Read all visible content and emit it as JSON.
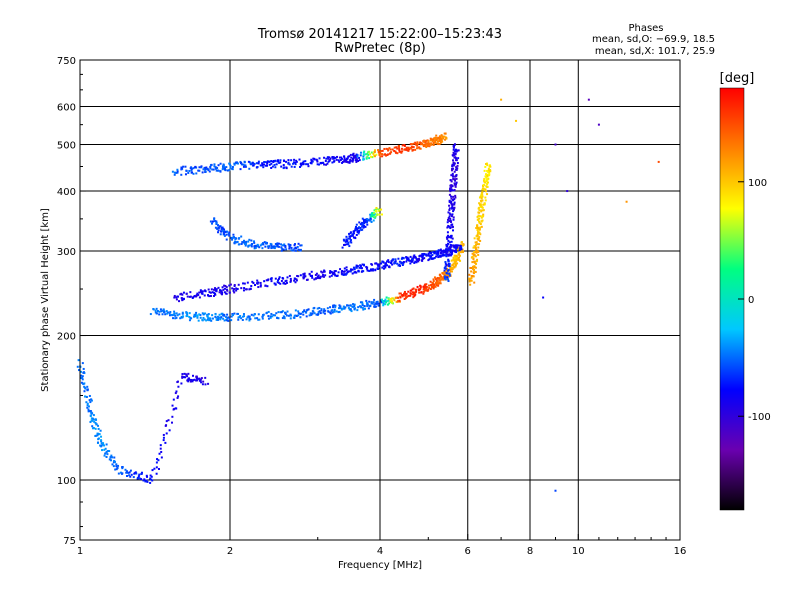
{
  "chart_data": {
    "type": "scatter",
    "title": "Tromsø 20141217 15:22:00–15:23:43",
    "subtitle": "RwPretec (8p)",
    "xlabel": "Frequency [MHz]",
    "ylabel": "Stationary phase Virtual Height [km]",
    "xscale": "log",
    "yscale": "log",
    "xlim": [
      1,
      16
    ],
    "ylim": [
      75,
      750
    ],
    "xticks": [
      1,
      2,
      4,
      6,
      8,
      10,
      16
    ],
    "xtick_labels": [
      "1",
      "2",
      "4",
      "6",
      "8",
      "10",
      "16"
    ],
    "yticks": [
      75,
      100,
      200,
      300,
      400,
      500,
      600,
      750
    ],
    "ytick_labels": [
      "75",
      "100",
      "200",
      "300",
      "400",
      "500",
      "600",
      "750"
    ],
    "grid": true,
    "phases_box": {
      "heading": "Phases",
      "line_o": "mean, sd,O: −69.9, 18.5",
      "line_x": "mean, sd,X: 101.7, 25.9"
    },
    "colorbar": {
      "label": "[deg]",
      "range": [
        -180,
        180
      ],
      "ticks": [
        100,
        0,
        -100
      ],
      "tick_labels": [
        "100",
        "0",
        "-100"
      ],
      "colors": [
        "#000000",
        "#6a00b0",
        "#0000ff",
        "#00c8ff",
        "#00ff80",
        "#ffff00",
        "#ff8000",
        "#ff0000"
      ]
    },
    "traces": [
      {
        "segment": "F2 lower trace",
        "f": [
          1.4,
          1.6,
          1.8,
          2.0,
          2.4,
          2.8,
          3.2,
          3.6,
          4.0,
          4.4,
          4.8,
          5.1,
          5.3,
          5.5,
          5.7,
          5.85
        ],
        "h": [
          225,
          220,
          218,
          218,
          220,
          222,
          226,
          230,
          234,
          240,
          248,
          255,
          262,
          272,
          288,
          310
        ],
        "phase": [
          -50,
          -45,
          -40,
          -50,
          -45,
          -55,
          -50,
          -45,
          -60,
          160,
          170,
          150,
          140,
          120,
          100,
          110
        ]
      },
      {
        "segment": "F2 upper trace",
        "f": [
          1.55,
          1.8,
          2.0,
          2.4,
          2.8,
          3.2,
          3.6,
          4.0,
          4.4,
          4.8,
          5.2,
          5.5,
          5.8
        ],
        "h": [
          240,
          245,
          250,
          258,
          265,
          270,
          275,
          280,
          285,
          290,
          295,
          300,
          305
        ],
        "phase": [
          -90,
          -85,
          -95,
          -80,
          -90,
          -85,
          -75,
          -80,
          -70,
          -85,
          -75,
          -90,
          -80
        ]
      },
      {
        "segment": "F2 second hop",
        "f": [
          1.55,
          1.8,
          2.0,
          2.3,
          2.6,
          3.0,
          3.4,
          3.6,
          4.0,
          4.5,
          4.9,
          5.2,
          5.4
        ],
        "h": [
          440,
          445,
          450,
          455,
          455,
          460,
          465,
          470,
          480,
          490,
          500,
          510,
          520
        ],
        "phase": [
          -55,
          -60,
          -50,
          -70,
          -75,
          -80,
          -85,
          -90,
          150,
          160,
          140,
          130,
          120
        ]
      },
      {
        "segment": "critical frequency ridge",
        "f": [
          5.45,
          5.5,
          5.55,
          5.6,
          5.65,
          5.7
        ],
        "h": [
          260,
          300,
          350,
          400,
          450,
          500
        ],
        "phase": [
          -60,
          -80,
          -90,
          -95,
          -100,
          -85
        ]
      },
      {
        "segment": "X mode ridge",
        "f": [
          6.1,
          6.2,
          6.3,
          6.4,
          6.5,
          6.6
        ],
        "h": [
          260,
          290,
          330,
          370,
          410,
          460
        ],
        "phase": [
          120,
          110,
          100,
          95,
          90,
          85
        ]
      },
      {
        "segment": "mid arc",
        "f": [
          1.85,
          2.0,
          2.2,
          2.5,
          2.8
        ],
        "h": [
          345,
          320,
          310,
          305,
          305
        ],
        "phase": [
          -60,
          -55,
          -50,
          -55,
          -60
        ]
      },
      {
        "segment": "mid feature",
        "f": [
          3.4,
          3.6,
          3.8,
          4.0
        ],
        "h": [
          310,
          330,
          350,
          365
        ],
        "phase": [
          -75,
          -70,
          -65,
          100
        ]
      },
      {
        "segment": "E region",
        "f": [
          1.0,
          1.05,
          1.1,
          1.2,
          1.4,
          1.6,
          1.8
        ],
        "h": [
          175,
          140,
          120,
          105,
          100,
          165,
          160
        ],
        "phase": [
          -50,
          -45,
          -40,
          -55,
          -80,
          -90,
          -95
        ]
      },
      {
        "segment": "scattered",
        "f": [
          9.0,
          9.5,
          10.5,
          11.0,
          12.5,
          14.5,
          7.0,
          7.5,
          8.5,
          9.0
        ],
        "h": [
          500,
          400,
          620,
          550,
          380,
          460,
          620,
          560,
          240,
          95
        ],
        "phase": [
          -110,
          -100,
          -120,
          -115,
          120,
          150,
          110,
          100,
          -80,
          -60
        ]
      }
    ]
  }
}
